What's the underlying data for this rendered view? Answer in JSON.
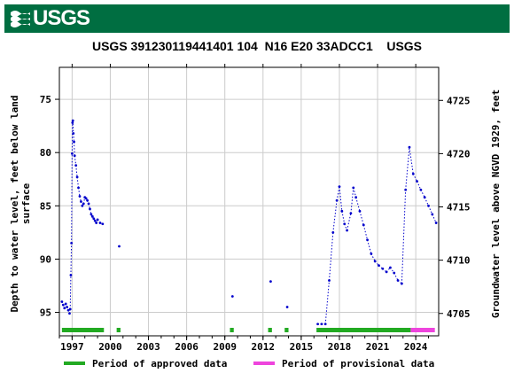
{
  "header": {
    "logo_text": "USGS"
  },
  "chart_data": {
    "type": "scatter",
    "title": "USGS 391230119441401 104  N16 E20 33ADCC1    USGS",
    "ylabel_left": "Depth to water level, feet below land surface",
    "ylabel_right": "Groundwater level above NGVD 1929, feet",
    "xlim": [
      1996.0,
      2025.8
    ],
    "ylim": [
      97.2,
      72.0
    ],
    "y_right_ticks": [
      {
        "depth": 75.1,
        "label": "4725"
      },
      {
        "depth": 80.1,
        "label": "4720"
      },
      {
        "depth": 85.1,
        "label": "4715"
      },
      {
        "depth": 90.1,
        "label": "4710"
      },
      {
        "depth": 95.1,
        "label": "4705"
      }
    ],
    "x_ticks": [
      1997,
      2000,
      2003,
      2006,
      2009,
      2012,
      2015,
      2018,
      2021,
      2024
    ],
    "y_ticks": [
      75,
      80,
      85,
      90,
      95
    ],
    "grid": true,
    "series": [
      {
        "x": [
          1996.2,
          1996.3,
          1996.4,
          1996.5,
          1996.6,
          1996.7,
          1996.8,
          1996.85,
          1996.9,
          1996.95,
          1997.0,
          1997.03,
          1997.06,
          1997.1,
          1997.15,
          1997.2,
          1997.3,
          1997.4,
          1997.5,
          1997.6,
          1997.7,
          1997.8,
          1997.9,
          1998.0,
          1998.1,
          1998.2,
          1998.3,
          1998.4,
          1998.5,
          1998.6,
          1998.7,
          1998.8,
          1998.9,
          1999.0,
          1999.2,
          1999.4
        ],
        "y": [
          94.0,
          94.3,
          94.6,
          94.2,
          94.5,
          94.8,
          95.1,
          94.7,
          91.5,
          88.5,
          80.1,
          77.2,
          77.0,
          78.2,
          79.0,
          80.3,
          81.2,
          82.3,
          83.3,
          84.1,
          84.6,
          85.0,
          84.8,
          84.2,
          84.3,
          84.5,
          84.8,
          85.3,
          85.8,
          86.0,
          86.2,
          86.4,
          86.6,
          86.3,
          86.6,
          86.7
        ]
      },
      {
        "x": [
          2000.7,
          2009.6,
          2012.6,
          2013.9,
          2016.3,
          2016.6,
          2016.9,
          2017.2,
          2017.5,
          2017.8,
          2018.0,
          2018.2,
          2018.4,
          2018.6,
          2018.9,
          2019.1,
          2019.3,
          2019.6,
          2019.9,
          2020.2,
          2020.5,
          2020.8,
          2021.1,
          2021.4,
          2021.7,
          2022.0,
          2022.3,
          2022.6,
          2022.9,
          2023.2,
          2023.5,
          2023.8,
          2024.1,
          2024.4,
          2024.7,
          2025.0,
          2025.3,
          2025.6
        ],
        "y": [
          88.8,
          93.5,
          92.1,
          94.5,
          96.1,
          96.1,
          96.1,
          92.0,
          87.5,
          84.5,
          83.2,
          85.5,
          86.7,
          87.3,
          85.7,
          83.3,
          84.2,
          85.5,
          86.8,
          88.2,
          89.5,
          90.2,
          90.6,
          90.9,
          91.2,
          90.8,
          91.3,
          92.0,
          92.3,
          83.5,
          79.5,
          82.0,
          82.7,
          83.5,
          84.2,
          85.0,
          85.8,
          86.6
        ]
      }
    ],
    "approved_periods": [
      [
        1996.2,
        1999.5
      ],
      [
        2000.5,
        2000.8
      ],
      [
        2009.4,
        2009.7
      ],
      [
        2012.4,
        2012.7
      ],
      [
        2013.7,
        2014.0
      ],
      [
        2016.2,
        2023.6
      ]
    ],
    "provisional_periods": [
      [
        2023.6,
        2025.5
      ]
    ],
    "colors": {
      "series": "#0000cc",
      "approved": "#22aa22",
      "provisional": "#ee44dd",
      "grid": "#cccccc"
    },
    "legend": [
      {
        "label": "Period of approved data",
        "color": "#22aa22"
      },
      {
        "label": "Period of provisional data",
        "color": "#ee44dd"
      }
    ],
    "legend_position": "bottom"
  }
}
